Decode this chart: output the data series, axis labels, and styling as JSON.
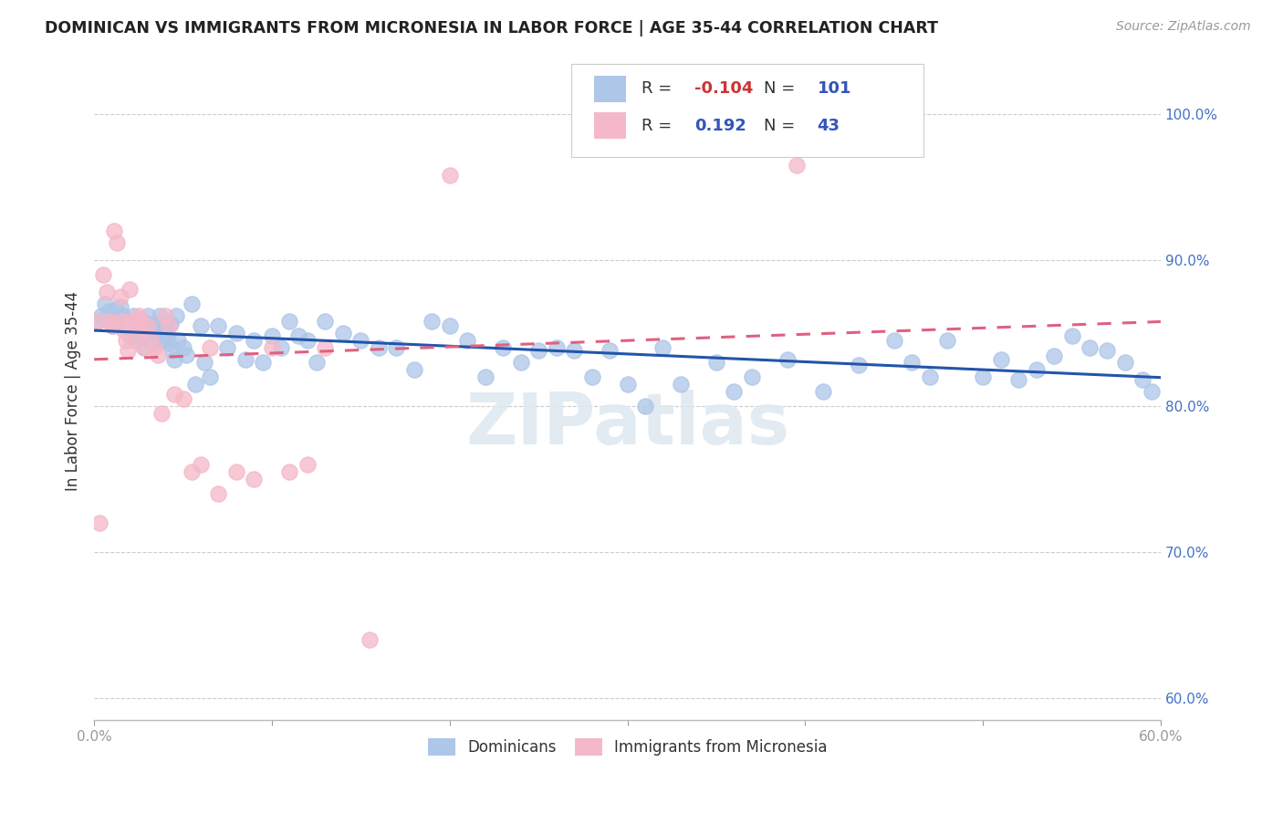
{
  "title": "DOMINICAN VS IMMIGRANTS FROM MICRONESIA IN LABOR FORCE | AGE 35-44 CORRELATION CHART",
  "source": "Source: ZipAtlas.com",
  "ylabel": "In Labor Force | Age 35-44",
  "x_min": 0.0,
  "x_max": 0.6,
  "y_min": 0.585,
  "y_max": 1.035,
  "x_ticks": [
    0.0,
    0.1,
    0.2,
    0.3,
    0.4,
    0.5,
    0.6
  ],
  "y_ticks_right": [
    0.6,
    0.7,
    0.8,
    0.9,
    1.0
  ],
  "y_tick_labels_right": [
    "60.0%",
    "70.0%",
    "80.0%",
    "90.0%",
    "100.0%"
  ],
  "dominican_color": "#aec6e8",
  "micronesia_color": "#f5b8c8",
  "dominican_line_color": "#2255aa",
  "micronesia_line_color": "#e06080",
  "legend_R1": "-0.104",
  "legend_N1": "101",
  "legend_R2": "0.192",
  "legend_N2": "43",
  "watermark": "ZIPatlas",
  "dominicans_label": "Dominicans",
  "micronesia_label": "Immigrants from Micronesia",
  "dominican_x": [
    0.002,
    0.004,
    0.006,
    0.008,
    0.01,
    0.012,
    0.013,
    0.014,
    0.015,
    0.016,
    0.018,
    0.019,
    0.02,
    0.021,
    0.022,
    0.023,
    0.024,
    0.025,
    0.026,
    0.027,
    0.028,
    0.029,
    0.03,
    0.031,
    0.032,
    0.033,
    0.034,
    0.035,
    0.036,
    0.037,
    0.038,
    0.039,
    0.04,
    0.041,
    0.042,
    0.043,
    0.044,
    0.045,
    0.046,
    0.047,
    0.05,
    0.052,
    0.055,
    0.057,
    0.06,
    0.062,
    0.065,
    0.07,
    0.075,
    0.08,
    0.085,
    0.09,
    0.095,
    0.1,
    0.105,
    0.11,
    0.115,
    0.12,
    0.125,
    0.13,
    0.14,
    0.15,
    0.16,
    0.17,
    0.18,
    0.19,
    0.2,
    0.21,
    0.22,
    0.23,
    0.24,
    0.25,
    0.26,
    0.27,
    0.28,
    0.29,
    0.3,
    0.31,
    0.32,
    0.33,
    0.35,
    0.36,
    0.37,
    0.39,
    0.41,
    0.43,
    0.45,
    0.46,
    0.47,
    0.48,
    0.5,
    0.51,
    0.52,
    0.53,
    0.54,
    0.55,
    0.56,
    0.57,
    0.58,
    0.59,
    0.595
  ],
  "dominican_y": [
    0.858,
    0.862,
    0.87,
    0.865,
    0.855,
    0.866,
    0.86,
    0.855,
    0.868,
    0.862,
    0.858,
    0.853,
    0.848,
    0.855,
    0.862,
    0.856,
    0.851,
    0.846,
    0.854,
    0.858,
    0.84,
    0.856,
    0.862,
    0.855,
    0.848,
    0.843,
    0.856,
    0.851,
    0.844,
    0.862,
    0.85,
    0.845,
    0.855,
    0.848,
    0.843,
    0.856,
    0.838,
    0.832,
    0.862,
    0.845,
    0.84,
    0.835,
    0.87,
    0.815,
    0.855,
    0.83,
    0.82,
    0.855,
    0.84,
    0.85,
    0.832,
    0.845,
    0.83,
    0.848,
    0.84,
    0.858,
    0.848,
    0.845,
    0.83,
    0.858,
    0.85,
    0.845,
    0.84,
    0.84,
    0.825,
    0.858,
    0.855,
    0.845,
    0.82,
    0.84,
    0.83,
    0.838,
    0.84,
    0.838,
    0.82,
    0.838,
    0.815,
    0.8,
    0.84,
    0.815,
    0.83,
    0.81,
    0.82,
    0.832,
    0.81,
    0.828,
    0.845,
    0.83,
    0.82,
    0.845,
    0.82,
    0.832,
    0.818,
    0.825,
    0.834,
    0.848,
    0.84,
    0.838,
    0.83,
    0.818,
    0.81
  ],
  "micronesia_x": [
    0.002,
    0.003,
    0.005,
    0.007,
    0.009,
    0.01,
    0.011,
    0.013,
    0.015,
    0.016,
    0.017,
    0.018,
    0.019,
    0.02,
    0.021,
    0.022,
    0.023,
    0.025,
    0.026,
    0.027,
    0.028,
    0.03,
    0.032,
    0.034,
    0.036,
    0.038,
    0.04,
    0.042,
    0.045,
    0.05,
    0.055,
    0.06,
    0.065,
    0.07,
    0.08,
    0.09,
    0.1,
    0.11,
    0.12,
    0.13,
    0.155,
    0.2,
    0.395
  ],
  "micronesia_y": [
    0.858,
    0.72,
    0.89,
    0.878,
    0.858,
    0.855,
    0.92,
    0.912,
    0.875,
    0.858,
    0.852,
    0.845,
    0.838,
    0.88,
    0.858,
    0.855,
    0.845,
    0.862,
    0.858,
    0.852,
    0.84,
    0.855,
    0.848,
    0.84,
    0.835,
    0.795,
    0.862,
    0.855,
    0.808,
    0.805,
    0.755,
    0.76,
    0.84,
    0.74,
    0.755,
    0.75,
    0.84,
    0.755,
    0.76,
    0.84,
    0.64,
    0.958,
    0.965
  ]
}
